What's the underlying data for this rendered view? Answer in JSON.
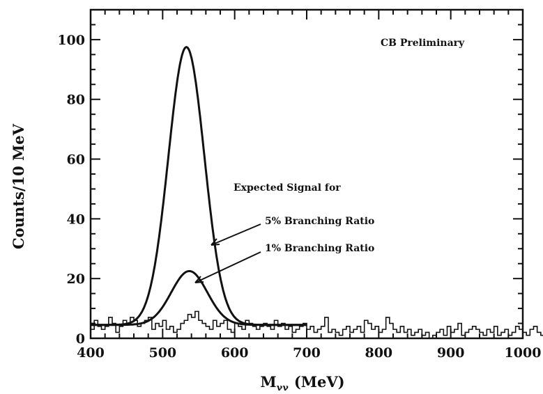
{
  "chart_data": {
    "type": "line",
    "title": "",
    "xlabel": "M",
    "xlabel_sub": "γγ",
    "xlabel_unit": "(MeV)",
    "ylabel": "Counts/10 MeV",
    "xlim": [
      400,
      1000
    ],
    "ylim": [
      0,
      110
    ],
    "x_ticks": [
      400,
      500,
      600,
      700,
      800,
      900,
      1000
    ],
    "y_ticks": [
      0,
      20,
      40,
      60,
      80,
      100
    ],
    "grid": false,
    "legend": "none",
    "series": [
      {
        "kind": "gaussian",
        "mean": 533,
        "sigma": 25,
        "amplitude": 93,
        "baseline": 4.5,
        "range": [
          400,
          700
        ]
      },
      {
        "kind": "gaussian",
        "mean": 537,
        "sigma": 25,
        "amplitude": 18,
        "baseline": 4.5,
        "range": [
          400,
          700
        ]
      },
      {
        "kind": "histogram",
        "bin_width": 5,
        "bins_start": 400,
        "values": [
          3,
          6,
          4,
          3,
          4,
          7,
          5,
          2,
          4,
          6,
          5,
          7,
          6,
          4,
          5,
          6,
          7,
          3,
          5,
          4,
          6,
          3,
          4,
          2,
          3,
          5,
          6,
          8,
          7,
          9,
          6,
          5,
          4,
          3,
          6,
          4,
          5,
          6,
          3,
          2,
          5,
          4,
          3,
          6,
          5,
          4,
          3,
          4,
          5,
          4,
          3,
          6,
          4,
          5,
          3,
          4,
          2,
          3,
          4,
          5,
          3,
          4,
          2,
          3,
          4,
          7,
          2,
          3,
          2,
          1,
          3,
          4,
          2,
          3,
          4,
          2,
          6,
          5,
          3,
          4,
          2,
          3,
          7,
          5,
          3,
          2,
          4,
          2,
          3,
          1,
          2,
          3,
          1,
          2,
          0,
          1,
          2,
          3,
          1,
          4,
          2,
          3,
          5,
          1,
          2,
          3,
          4,
          3,
          2,
          1,
          3,
          2,
          4,
          1,
          2,
          3,
          1,
          2,
          4,
          3,
          2,
          1,
          3,
          4,
          2,
          1,
          3,
          2,
          5,
          3,
          4,
          2,
          1,
          3,
          2,
          1,
          2,
          3,
          1,
          2,
          1,
          0,
          1,
          2,
          1,
          0,
          1,
          2,
          1,
          0,
          2,
          1,
          0,
          1,
          2,
          1,
          0,
          2,
          1,
          0,
          1,
          0,
          1,
          2,
          1,
          0,
          1,
          2,
          1,
          0,
          1,
          2,
          0,
          1,
          0,
          1,
          1,
          0,
          1,
          0,
          1,
          1,
          0,
          1,
          0,
          2,
          1,
          0,
          1,
          0,
          1,
          0,
          2,
          1,
          0,
          1,
          0,
          1,
          0,
          2,
          1,
          0,
          1,
          0,
          2,
          1,
          0,
          1,
          0,
          2,
          1,
          0,
          1,
          0,
          2,
          1,
          0,
          1
        ]
      }
    ],
    "annotations": {
      "preliminary": "CB Preliminary",
      "expected": "Expected Signal for",
      "five_pct": "5% Branching Ratio",
      "one_pct": "1% Branching Ratio"
    }
  }
}
